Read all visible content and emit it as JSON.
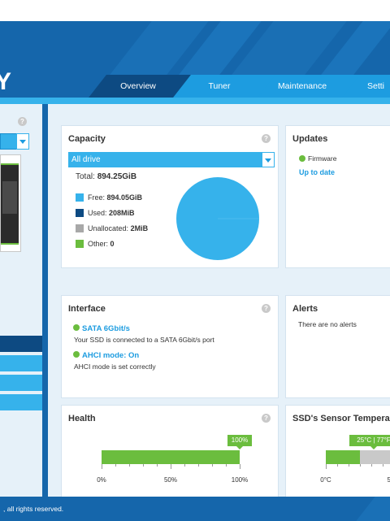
{
  "header": {
    "brand_fragment": "Y"
  },
  "tabs": [
    {
      "label": "Overview",
      "active": true
    },
    {
      "label": "Tuner",
      "active": false
    },
    {
      "label": "Maintenance",
      "active": false
    },
    {
      "label": "Setti",
      "active": false
    }
  ],
  "left_panel": {
    "help": "?"
  },
  "capacity": {
    "title": "Capacity",
    "help": "?",
    "drive_select": "All drive",
    "total_label": "Total:",
    "total_value": "894.25GiB",
    "legend": [
      {
        "label": "Free:",
        "value": "894.05GiB",
        "color": "#36b2eb"
      },
      {
        "label": "Used:",
        "value": "208MiB",
        "color": "#0d4a82"
      },
      {
        "label": "Unallocated:",
        "value": "2MiB",
        "color": "#a8a8a8"
      },
      {
        "label": "Other:",
        "value": "0",
        "color": "#6bbd3e"
      }
    ],
    "pie_color": "#36b2eb"
  },
  "updates": {
    "title": "Updates",
    "firmware_label": "Firmware",
    "status_link": "Up to date"
  },
  "interface": {
    "title": "Interface",
    "help": "?",
    "items": [
      {
        "title": "SATA 6Gbit/s",
        "desc": "Your SSD is connected to a SATA 6Gbit/s port"
      },
      {
        "title": "AHCI mode: On",
        "desc": "AHCI mode is set correctly"
      }
    ]
  },
  "alerts": {
    "title": "Alerts",
    "message": "There are no alerts"
  },
  "health": {
    "title": "Health",
    "help": "?",
    "value_label": "100%",
    "fill_fraction": 1.0,
    "tick_labels": [
      "0%",
      "50%",
      "100%"
    ]
  },
  "temperature": {
    "title": "SSD's Sensor Tempera",
    "value_label": "25°C | 77°F",
    "tick_labels": [
      "0°C",
      "5"
    ]
  },
  "footer": {
    "text": ", all rights reserved."
  },
  "colors": {
    "brand_blue": "#1566ab",
    "accent": "#1d9ce0",
    "light_blue": "#36b2eb",
    "green": "#6bbd3e"
  }
}
